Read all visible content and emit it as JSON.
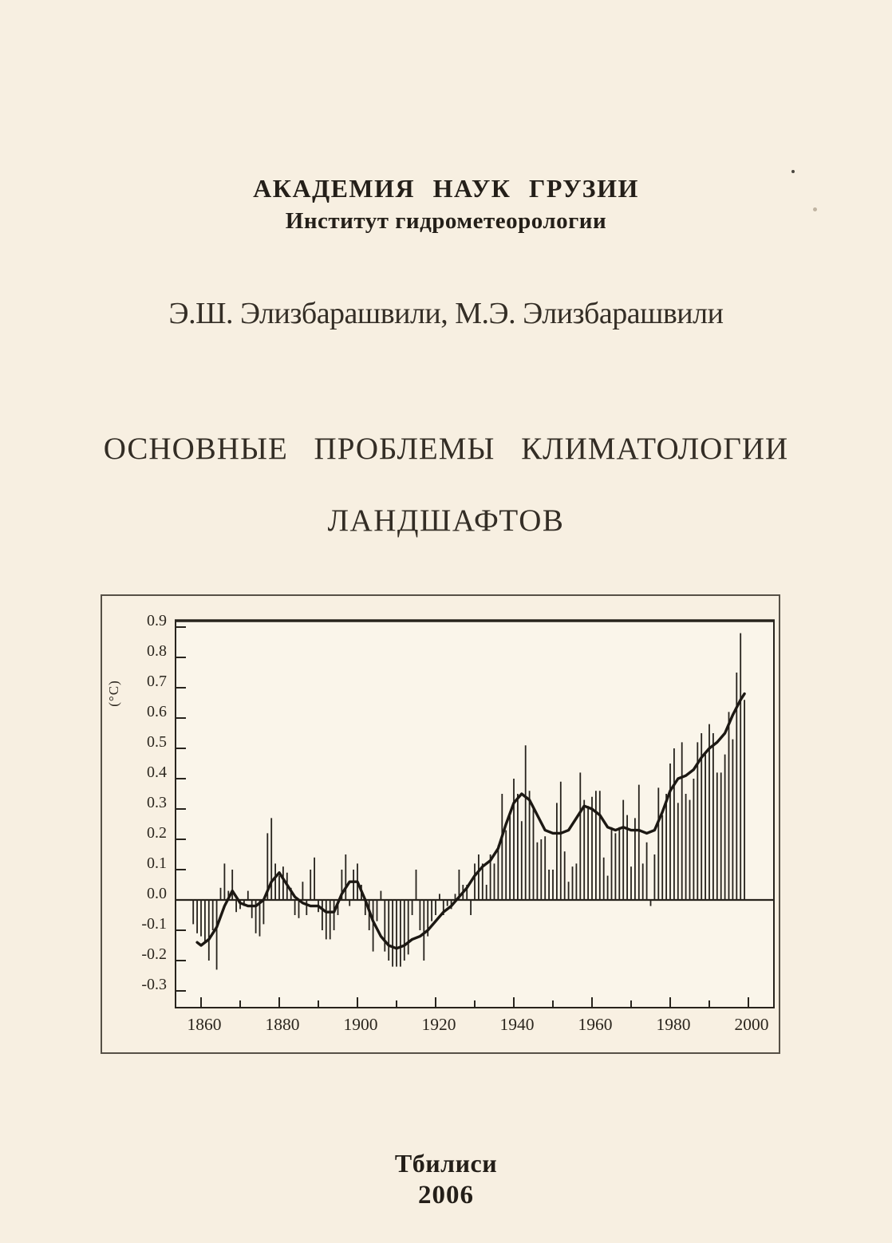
{
  "header": {
    "line1": "АКАДЕМИЯ НАУК ГРУЗИИ",
    "line2": "Институт гидрометеорологии"
  },
  "authors": "Э.Ш. Элизбарашвили, М.Э. Элизбарашвили",
  "title": {
    "line1": "ОСНОВНЫЕ ПРОБЛЕМЫ КЛИМАТОЛОГИИ",
    "line2": "ЛАНДШАФТОВ"
  },
  "imprint": {
    "city": "Тбилиси",
    "year": "2006"
  },
  "colors": {
    "page_background": "#f7efe1",
    "figure_border": "#565046",
    "text": "#2a251e"
  },
  "chart_data": {
    "type": "bar",
    "title": "",
    "xlabel": "",
    "ylabel": "(°C)",
    "xlim": [
      1853.5,
      2006
    ],
    "ylim": [
      -0.37,
      0.92
    ],
    "grid": false,
    "legend": "none",
    "x_major_tick_labels": [
      "1860",
      "1880",
      "1900",
      "1920",
      "1940",
      "1960",
      "1980",
      "2000"
    ],
    "x_minor_tick_step_years": 10,
    "y_tick_labels": [
      "0.9",
      "0.8",
      "0.7",
      "0.6",
      "0.5",
      "0.4",
      "0.3",
      "0.2",
      "0.1",
      "0.0",
      "-0.1",
      "-0.2",
      "-0.3"
    ],
    "start_year": 1858,
    "end_year": 1999,
    "annual_anomaly": [
      -0.08,
      -0.11,
      -0.12,
      -0.14,
      -0.2,
      -0.1,
      -0.23,
      0.04,
      0.12,
      0.03,
      0.1,
      -0.04,
      -0.03,
      -0.02,
      0.03,
      -0.06,
      -0.11,
      -0.12,
      -0.08,
      0.22,
      0.27,
      0.12,
      0.08,
      0.11,
      0.09,
      0.04,
      -0.05,
      -0.06,
      0.06,
      -0.05,
      0.1,
      0.14,
      -0.04,
      -0.1,
      -0.13,
      -0.13,
      -0.1,
      -0.05,
      0.1,
      0.15,
      -0.02,
      0.1,
      0.12,
      0.05,
      -0.05,
      -0.1,
      -0.17,
      -0.07,
      0.03,
      -0.17,
      -0.2,
      -0.22,
      -0.22,
      -0.22,
      -0.2,
      -0.18,
      -0.05,
      0.1,
      -0.1,
      -0.2,
      -0.12,
      -0.07,
      -0.05,
      0.02,
      -0.05,
      -0.02,
      -0.03,
      0.02,
      0.1,
      0.05,
      0.05,
      -0.05,
      0.12,
      0.15,
      0.12,
      0.05,
      0.15,
      0.12,
      0.18,
      0.35,
      0.23,
      0.29,
      0.4,
      0.35,
      0.26,
      0.51,
      0.36,
      0.3,
      0.19,
      0.2,
      0.21,
      0.1,
      0.1,
      0.32,
      0.39,
      0.16,
      0.06,
      0.11,
      0.12,
      0.42,
      0.33,
      0.31,
      0.34,
      0.36,
      0.36,
      0.14,
      0.08,
      0.24,
      0.22,
      0.24,
      0.33,
      0.28,
      0.11,
      0.27,
      0.38,
      0.12,
      0.19,
      -0.02,
      0.15,
      0.37,
      0.28,
      0.35,
      0.45,
      0.5,
      0.32,
      0.52,
      0.35,
      0.33,
      0.4,
      0.52,
      0.55,
      0.48,
      0.58,
      0.55,
      0.42,
      0.42,
      0.48,
      0.62,
      0.53,
      0.75,
      0.88,
      0.66
    ],
    "smoothed_curve": [
      [
        1859,
        -0.14
      ],
      [
        1860,
        -0.15
      ],
      [
        1862,
        -0.13
      ],
      [
        1864,
        -0.09
      ],
      [
        1866,
        -0.02
      ],
      [
        1868,
        0.03
      ],
      [
        1870,
        -0.01
      ],
      [
        1872,
        -0.02
      ],
      [
        1874,
        -0.02
      ],
      [
        1876,
        0.0
      ],
      [
        1878,
        0.06
      ],
      [
        1880,
        0.09
      ],
      [
        1882,
        0.05
      ],
      [
        1884,
        0.01
      ],
      [
        1886,
        -0.01
      ],
      [
        1888,
        -0.02
      ],
      [
        1890,
        -0.02
      ],
      [
        1892,
        -0.04
      ],
      [
        1894,
        -0.04
      ],
      [
        1896,
        0.02
      ],
      [
        1898,
        0.06
      ],
      [
        1900,
        0.06
      ],
      [
        1902,
        0.0
      ],
      [
        1904,
        -0.07
      ],
      [
        1906,
        -0.12
      ],
      [
        1908,
        -0.15
      ],
      [
        1910,
        -0.16
      ],
      [
        1912,
        -0.15
      ],
      [
        1914,
        -0.13
      ],
      [
        1916,
        -0.12
      ],
      [
        1918,
        -0.1
      ],
      [
        1920,
        -0.07
      ],
      [
        1922,
        -0.04
      ],
      [
        1924,
        -0.02
      ],
      [
        1926,
        0.01
      ],
      [
        1928,
        0.04
      ],
      [
        1930,
        0.08
      ],
      [
        1932,
        0.11
      ],
      [
        1934,
        0.13
      ],
      [
        1936,
        0.17
      ],
      [
        1938,
        0.25
      ],
      [
        1940,
        0.32
      ],
      [
        1942,
        0.35
      ],
      [
        1944,
        0.33
      ],
      [
        1946,
        0.28
      ],
      [
        1948,
        0.23
      ],
      [
        1950,
        0.22
      ],
      [
        1952,
        0.22
      ],
      [
        1954,
        0.23
      ],
      [
        1956,
        0.27
      ],
      [
        1958,
        0.31
      ],
      [
        1960,
        0.3
      ],
      [
        1962,
        0.28
      ],
      [
        1964,
        0.24
      ],
      [
        1966,
        0.23
      ],
      [
        1968,
        0.24
      ],
      [
        1970,
        0.23
      ],
      [
        1972,
        0.23
      ],
      [
        1974,
        0.22
      ],
      [
        1976,
        0.23
      ],
      [
        1978,
        0.29
      ],
      [
        1980,
        0.36
      ],
      [
        1982,
        0.4
      ],
      [
        1984,
        0.41
      ],
      [
        1986,
        0.43
      ],
      [
        1988,
        0.47
      ],
      [
        1990,
        0.5
      ],
      [
        1992,
        0.52
      ],
      [
        1994,
        0.55
      ],
      [
        1996,
        0.61
      ],
      [
        1998,
        0.66
      ],
      [
        1999,
        0.68
      ]
    ],
    "bar_color": "#26221c",
    "curve_color": "#1c1813",
    "axis_color": "#28241d",
    "plot_background": "#faf5ea"
  }
}
